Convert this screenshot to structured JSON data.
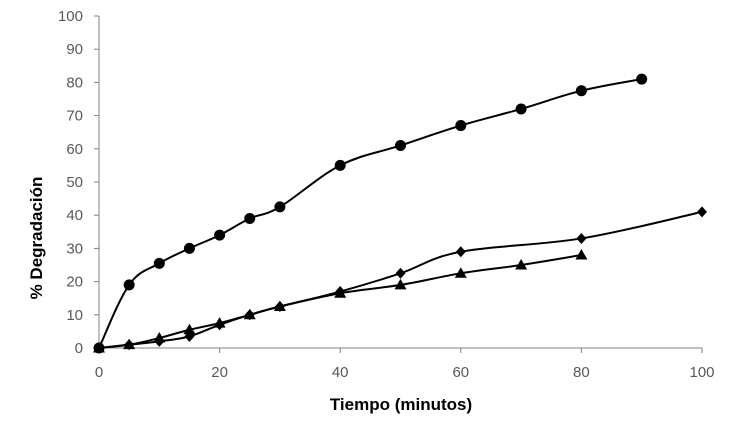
{
  "chart_data": {
    "type": "line",
    "xlabel": "Tiempo (minutos)",
    "ylabel": "% Degradación",
    "xlim": [
      0,
      100
    ],
    "ylim": [
      0,
      100
    ],
    "x_ticks": [
      0,
      20,
      40,
      60,
      80,
      100
    ],
    "y_ticks": [
      0,
      10,
      20,
      30,
      40,
      50,
      60,
      70,
      80,
      90,
      100
    ],
    "grid": false,
    "legend": "none",
    "series": [
      {
        "marker": "circle",
        "color": "#000000",
        "points": [
          [
            0,
            0
          ],
          [
            5,
            19
          ],
          [
            10,
            25.5
          ],
          [
            15,
            30
          ],
          [
            20,
            34
          ],
          [
            25,
            39
          ],
          [
            30,
            42.5
          ],
          [
            40,
            55
          ],
          [
            50,
            61
          ],
          [
            60,
            67
          ],
          [
            70,
            72
          ],
          [
            80,
            77.5
          ],
          [
            90,
            81
          ]
        ]
      },
      {
        "marker": "diamond",
        "color": "#000000",
        "points": [
          [
            0,
            0
          ],
          [
            5,
            1
          ],
          [
            10,
            2
          ],
          [
            15,
            3.5
          ],
          [
            20,
            7
          ],
          [
            25,
            10
          ],
          [
            30,
            12.5
          ],
          [
            40,
            17
          ],
          [
            50,
            22.5
          ],
          [
            60,
            29
          ],
          [
            80,
            33
          ],
          [
            100,
            41
          ]
        ]
      },
      {
        "marker": "triangle",
        "color": "#000000",
        "points": [
          [
            0,
            0
          ],
          [
            5,
            1
          ],
          [
            10,
            3
          ],
          [
            15,
            5.5
          ],
          [
            20,
            7.5
          ],
          [
            25,
            10
          ],
          [
            30,
            12.5
          ],
          [
            40,
            16.5
          ],
          [
            50,
            19
          ],
          [
            60,
            22.5
          ],
          [
            70,
            25
          ],
          [
            80,
            28
          ]
        ]
      }
    ]
  }
}
